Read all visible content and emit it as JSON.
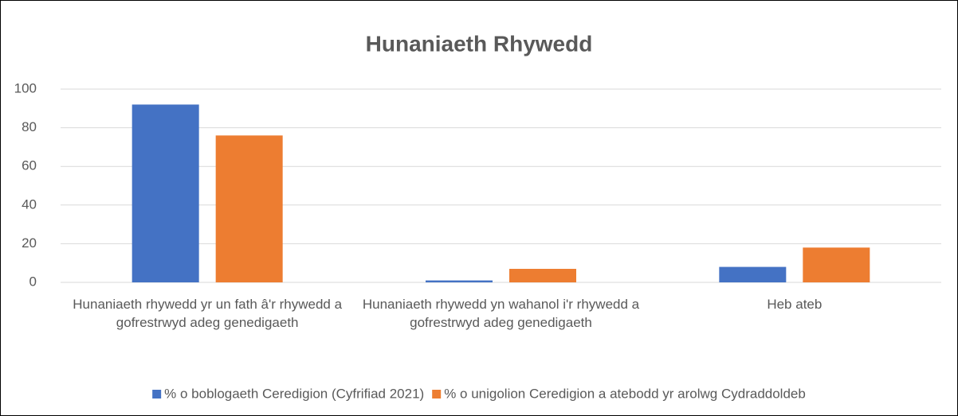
{
  "chart_data": {
    "type": "bar",
    "title": "Hunaniaeth Rhywedd",
    "categories": [
      "Hunaniaeth rhywedd yr un fath â'r rhywedd a gofrestrwyd adeg genedigaeth",
      "Hunaniaeth rhywedd yn wahanol i'r rhywedd a gofrestrwyd adeg genedigaeth",
      "Heb ateb"
    ],
    "series": [
      {
        "name": "% o boblogaeth Ceredigion (Cyfrifiad 2021)",
        "color": "#4472c4",
        "values": [
          92,
          1,
          8
        ]
      },
      {
        "name": "% o unigolion Ceredigion a atebodd yr arolwg Cydraddoldeb",
        "color": "#ed7d31",
        "values": [
          76,
          7,
          18
        ]
      }
    ],
    "ylim": [
      0,
      100
    ],
    "yticks": [
      0,
      20,
      40,
      60,
      80,
      100
    ],
    "grid": true,
    "legend": "bottom"
  }
}
